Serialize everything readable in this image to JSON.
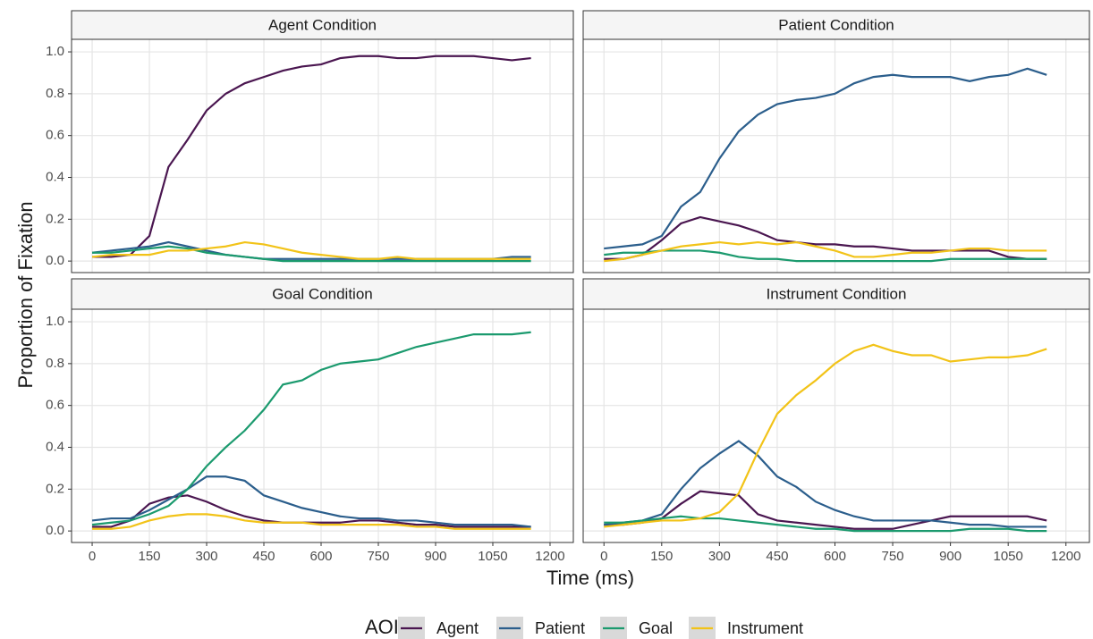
{
  "x_label": "Time (ms)",
  "y_label": "Proportion of Fixation",
  "legend_title": "AOI",
  "chart_data": [
    {
      "type": "line",
      "title": "Agent Condition",
      "x": [
        0,
        50,
        100,
        150,
        200,
        250,
        300,
        350,
        400,
        450,
        500,
        550,
        600,
        650,
        700,
        750,
        800,
        850,
        900,
        950,
        1000,
        1050,
        1100,
        1150
      ],
      "series": [
        {
          "name": "Agent",
          "color": "#4a1650",
          "values": [
            0.02,
            0.02,
            0.03,
            0.12,
            0.45,
            0.58,
            0.72,
            0.8,
            0.85,
            0.88,
            0.91,
            0.93,
            0.94,
            0.97,
            0.98,
            0.98,
            0.97,
            0.97,
            0.98,
            0.98,
            0.98,
            0.97,
            0.96,
            0.97
          ]
        },
        {
          "name": "Patient",
          "color": "#2b5e8c",
          "values": [
            0.04,
            0.05,
            0.06,
            0.07,
            0.09,
            0.07,
            0.05,
            0.03,
            0.02,
            0.01,
            0.01,
            0.01,
            0.01,
            0.01,
            0.01,
            0.01,
            0.01,
            0.01,
            0.01,
            0.01,
            0.01,
            0.01,
            0.02,
            0.02
          ]
        },
        {
          "name": "Goal",
          "color": "#1b9a6e",
          "values": [
            0.04,
            0.04,
            0.05,
            0.06,
            0.07,
            0.06,
            0.04,
            0.03,
            0.02,
            0.01,
            0,
            0,
            0,
            0,
            0,
            0,
            0,
            0,
            0,
            0,
            0,
            0,
            0,
            0
          ]
        },
        {
          "name": "Instrument",
          "color": "#f2c318",
          "values": [
            0.02,
            0.03,
            0.03,
            0.03,
            0.05,
            0.05,
            0.06,
            0.07,
            0.09,
            0.08,
            0.06,
            0.04,
            0.03,
            0.02,
            0.01,
            0.01,
            0.02,
            0.01,
            0.01,
            0.01,
            0.01,
            0.01,
            0.01,
            0.01
          ]
        }
      ],
      "xlim": [
        -54,
        1261
      ],
      "ylim": [
        -0.055,
        1.06
      ],
      "xticks": [
        0,
        150,
        300,
        450,
        600,
        750,
        900,
        1050,
        1200
      ],
      "yticks": [
        {
          "value": 0,
          "label": "0.0"
        },
        0.2,
        0.4,
        0.6,
        0.8,
        {
          "value": 1,
          "label": "1.0"
        }
      ],
      "grid": true
    },
    {
      "type": "line",
      "title": "Patient Condition",
      "x": [
        0,
        50,
        100,
        150,
        200,
        250,
        300,
        350,
        400,
        450,
        500,
        550,
        600,
        650,
        700,
        750,
        800,
        850,
        900,
        950,
        1000,
        1050,
        1100,
        1150
      ],
      "series": [
        {
          "name": "Agent",
          "color": "#4a1650",
          "values": [
            0.01,
            0.01,
            0.03,
            0.1,
            0.18,
            0.21,
            0.19,
            0.17,
            0.14,
            0.1,
            0.09,
            0.08,
            0.08,
            0.07,
            0.07,
            0.06,
            0.05,
            0.05,
            0.05,
            0.05,
            0.05,
            0.02,
            0.01,
            0.01
          ]
        },
        {
          "name": "Patient",
          "color": "#2b5e8c",
          "values": [
            0.06,
            0.07,
            0.08,
            0.12,
            0.26,
            0.33,
            0.49,
            0.62,
            0.7,
            0.75,
            0.77,
            0.78,
            0.8,
            0.85,
            0.88,
            0.89,
            0.88,
            0.88,
            0.88,
            0.86,
            0.88,
            0.89,
            0.92,
            0.89
          ]
        },
        {
          "name": "Goal",
          "color": "#1b9a6e",
          "values": [
            0.03,
            0.04,
            0.04,
            0.05,
            0.05,
            0.05,
            0.04,
            0.02,
            0.01,
            0.01,
            0,
            0,
            0,
            0,
            0,
            0,
            0,
            0,
            0.01,
            0.01,
            0.01,
            0.01,
            0.01,
            0.01
          ]
        },
        {
          "name": "Instrument",
          "color": "#f2c318",
          "values": [
            0,
            0.01,
            0.03,
            0.05,
            0.07,
            0.08,
            0.09,
            0.08,
            0.09,
            0.08,
            0.09,
            0.07,
            0.05,
            0.02,
            0.02,
            0.03,
            0.04,
            0.04,
            0.05,
            0.06,
            0.06,
            0.05,
            0.05,
            0.05
          ]
        }
      ],
      "xlim": [
        -54,
        1261
      ],
      "ylim": [
        -0.055,
        1.06
      ],
      "xticks": [
        0,
        150,
        300,
        450,
        600,
        750,
        900,
        1050,
        1200
      ],
      "yticks": [
        {
          "value": 0,
          "label": "0.0"
        },
        0.2,
        0.4,
        0.6,
        0.8,
        {
          "value": 1,
          "label": "1.0"
        }
      ],
      "grid": true
    },
    {
      "type": "line",
      "title": "Goal Condition",
      "x": [
        0,
        50,
        100,
        150,
        200,
        250,
        300,
        350,
        400,
        450,
        500,
        550,
        600,
        650,
        700,
        750,
        800,
        850,
        900,
        950,
        1000,
        1050,
        1100,
        1150
      ],
      "series": [
        {
          "name": "Agent",
          "color": "#4a1650",
          "values": [
            0.02,
            0.02,
            0.05,
            0.13,
            0.16,
            0.17,
            0.14,
            0.1,
            0.07,
            0.05,
            0.04,
            0.04,
            0.04,
            0.04,
            0.05,
            0.05,
            0.04,
            0.03,
            0.03,
            0.02,
            0.02,
            0.02,
            0.02,
            0.02
          ]
        },
        {
          "name": "Patient",
          "color": "#2b5e8c",
          "values": [
            0.05,
            0.06,
            0.06,
            0.1,
            0.15,
            0.2,
            0.26,
            0.26,
            0.24,
            0.17,
            0.14,
            0.11,
            0.09,
            0.07,
            0.06,
            0.06,
            0.05,
            0.05,
            0.04,
            0.03,
            0.03,
            0.03,
            0.03,
            0.02
          ]
        },
        {
          "name": "Goal",
          "color": "#1b9a6e",
          "values": [
            0.03,
            0.04,
            0.05,
            0.08,
            0.12,
            0.2,
            0.31,
            0.4,
            0.48,
            0.58,
            0.7,
            0.72,
            0.77,
            0.8,
            0.81,
            0.82,
            0.85,
            0.88,
            0.9,
            0.92,
            0.94,
            0.94,
            0.94,
            0.95
          ]
        },
        {
          "name": "Instrument",
          "color": "#f2c318",
          "values": [
            0.01,
            0.01,
            0.02,
            0.05,
            0.07,
            0.08,
            0.08,
            0.07,
            0.05,
            0.04,
            0.04,
            0.04,
            0.03,
            0.03,
            0.03,
            0.03,
            0.03,
            0.02,
            0.02,
            0.01,
            0.01,
            0.01,
            0.01,
            0.01
          ]
        }
      ],
      "xlim": [
        -54,
        1261
      ],
      "ylim": [
        -0.055,
        1.06
      ],
      "xticks": [
        0,
        150,
        300,
        450,
        600,
        750,
        900,
        1050,
        1200
      ],
      "yticks": [
        {
          "value": 0,
          "label": "0.0"
        },
        0.2,
        0.4,
        0.6,
        0.8,
        {
          "value": 1,
          "label": "1.0"
        }
      ],
      "grid": true
    },
    {
      "type": "line",
      "title": "Instrument Condition",
      "x": [
        0,
        50,
        100,
        150,
        200,
        250,
        300,
        350,
        400,
        450,
        500,
        550,
        600,
        650,
        700,
        750,
        800,
        850,
        900,
        950,
        1000,
        1050,
        1100,
        1150
      ],
      "series": [
        {
          "name": "Agent",
          "color": "#4a1650",
          "values": [
            0.03,
            0.03,
            0.04,
            0.06,
            0.13,
            0.19,
            0.18,
            0.17,
            0.08,
            0.05,
            0.04,
            0.03,
            0.02,
            0.01,
            0.01,
            0.01,
            0.03,
            0.05,
            0.07,
            0.07,
            0.07,
            0.07,
            0.07,
            0.05
          ]
        },
        {
          "name": "Patient",
          "color": "#2b5e8c",
          "values": [
            0.03,
            0.04,
            0.05,
            0.08,
            0.2,
            0.3,
            0.37,
            0.43,
            0.36,
            0.26,
            0.21,
            0.14,
            0.1,
            0.07,
            0.05,
            0.05,
            0.05,
            0.05,
            0.04,
            0.03,
            0.03,
            0.02,
            0.02,
            0.02
          ]
        },
        {
          "name": "Goal",
          "color": "#1b9a6e",
          "values": [
            0.04,
            0.04,
            0.05,
            0.06,
            0.07,
            0.06,
            0.06,
            0.05,
            0.04,
            0.03,
            0.02,
            0.01,
            0.01,
            0,
            0,
            0,
            0,
            0,
            0,
            0.01,
            0.01,
            0.01,
            0,
            0
          ]
        },
        {
          "name": "Instrument",
          "color": "#f2c318",
          "values": [
            0.02,
            0.03,
            0.04,
            0.05,
            0.05,
            0.06,
            0.09,
            0.18,
            0.38,
            0.56,
            0.65,
            0.72,
            0.8,
            0.86,
            0.89,
            0.86,
            0.84,
            0.84,
            0.81,
            0.82,
            0.83,
            0.83,
            0.84,
            0.87
          ]
        }
      ],
      "xlim": [
        -54,
        1261
      ],
      "ylim": [
        -0.055,
        1.06
      ],
      "xticks": [
        0,
        150,
        300,
        450,
        600,
        750,
        900,
        1050,
        1200
      ],
      "yticks": [
        {
          "value": 0,
          "label": "0.0"
        },
        0.2,
        0.4,
        0.6,
        0.8,
        {
          "value": 1,
          "label": "1.0"
        }
      ],
      "grid": true
    }
  ]
}
